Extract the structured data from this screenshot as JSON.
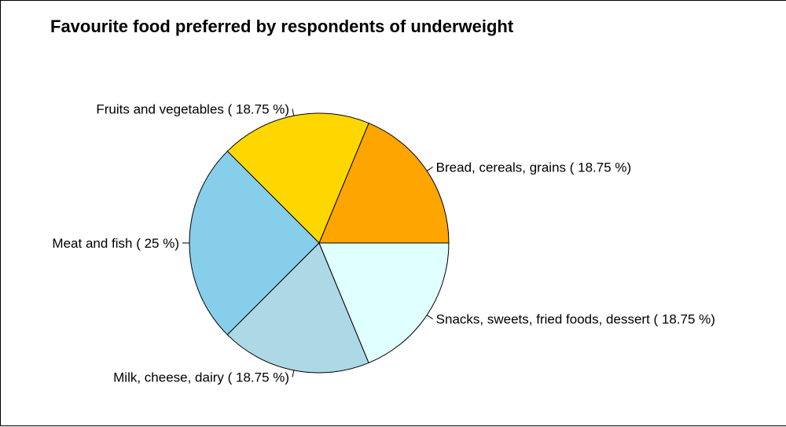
{
  "chart_data": {
    "type": "pie",
    "title": "Favourite food preferred by respondents of underweight",
    "slices": [
      {
        "label": "Bread, cereals, grains ( 18.75 %)",
        "value": 18.75,
        "color": "#FFA500"
      },
      {
        "label": "Fruits and vegetables ( 18.75 %)",
        "value": 18.75,
        "color": "#FFD700"
      },
      {
        "label": "Meat and fish ( 25 %)",
        "value": 25,
        "color": "#87CEEB"
      },
      {
        "label": "Milk, cheese, dairy ( 18.75 %)",
        "value": 18.75,
        "color": "#ADD8E6"
      },
      {
        "label": "Snacks, sweets, fried foods, dessert ( 18.75 %)",
        "value": 18.75,
        "color": "#E0FFFF"
      }
    ],
    "start_angle_deg": 0,
    "direction": "counterclockwise",
    "legend": "none"
  }
}
